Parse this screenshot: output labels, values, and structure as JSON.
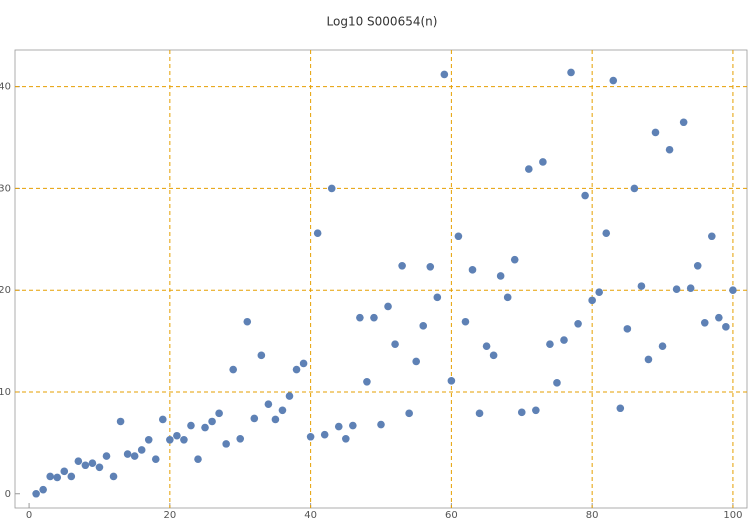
{
  "chart_data": {
    "type": "scatter",
    "title": "Log10 S000654(n)",
    "x": [
      1,
      2,
      3,
      4,
      5,
      6,
      7,
      8,
      9,
      10,
      11,
      12,
      13,
      14,
      15,
      16,
      17,
      18,
      19,
      20,
      21,
      22,
      23,
      24,
      25,
      26,
      27,
      28,
      29,
      30,
      31,
      32,
      33,
      34,
      35,
      36,
      37,
      38,
      39,
      40,
      41,
      42,
      43,
      44,
      45,
      46,
      47,
      48,
      49,
      50,
      51,
      52,
      53,
      54,
      55,
      56,
      57,
      58,
      59,
      60,
      61,
      62,
      63,
      64,
      65,
      66,
      67,
      68,
      69,
      70,
      71,
      72,
      73,
      74,
      75,
      76,
      77,
      78,
      79,
      80,
      81,
      82,
      83,
      84,
      85,
      86,
      87,
      88,
      89,
      90,
      91,
      92,
      93,
      94,
      95,
      96,
      97,
      98,
      99,
      100
    ],
    "y": [
      0,
      0.4,
      1.7,
      1.6,
      2.2,
      1.7,
      3.2,
      2.8,
      3.0,
      2.6,
      3.7,
      1.7,
      7.1,
      3.9,
      3.7,
      4.3,
      5.3,
      3.4,
      7.3,
      5.3,
      5.7,
      5.3,
      6.7,
      3.4,
      6.5,
      7.1,
      7.9,
      4.9,
      12.2,
      5.4,
      16.9,
      7.4,
      13.6,
      8.8,
      7.3,
      8.2,
      9.6,
      12.2,
      12.8,
      5.6,
      25.6,
      5.8,
      30.0,
      6.6,
      5.4,
      6.7,
      17.3,
      11.0,
      17.3,
      6.8,
      18.4,
      14.7,
      22.4,
      7.9,
      13.0,
      16.5,
      22.3,
      19.3,
      41.2,
      11.1,
      25.3,
      16.9,
      22.0,
      7.9,
      14.5,
      13.6,
      21.4,
      19.3,
      23.0,
      8.0,
      31.9,
      8.2,
      32.6,
      14.7,
      10.9,
      15.1,
      41.4,
      16.7,
      29.3,
      19.0,
      19.8,
      25.6,
      40.6,
      8.4,
      16.2,
      30.0,
      20.4,
      13.2,
      35.5,
      14.5,
      33.8,
      20.1,
      36.5,
      20.2,
      22.4,
      16.8,
      25.3,
      17.3,
      16.4,
      20.0
    ],
    "color": "#5e81b5",
    "grid_color": "#e69f00",
    "xlim": [
      -2,
      102
    ],
    "ylim": [
      -1.4,
      43.6
    ],
    "xticks": [
      0,
      20,
      40,
      60,
      80,
      100
    ],
    "yticks": [
      0,
      10,
      20,
      30,
      40
    ],
    "grid": true
  }
}
